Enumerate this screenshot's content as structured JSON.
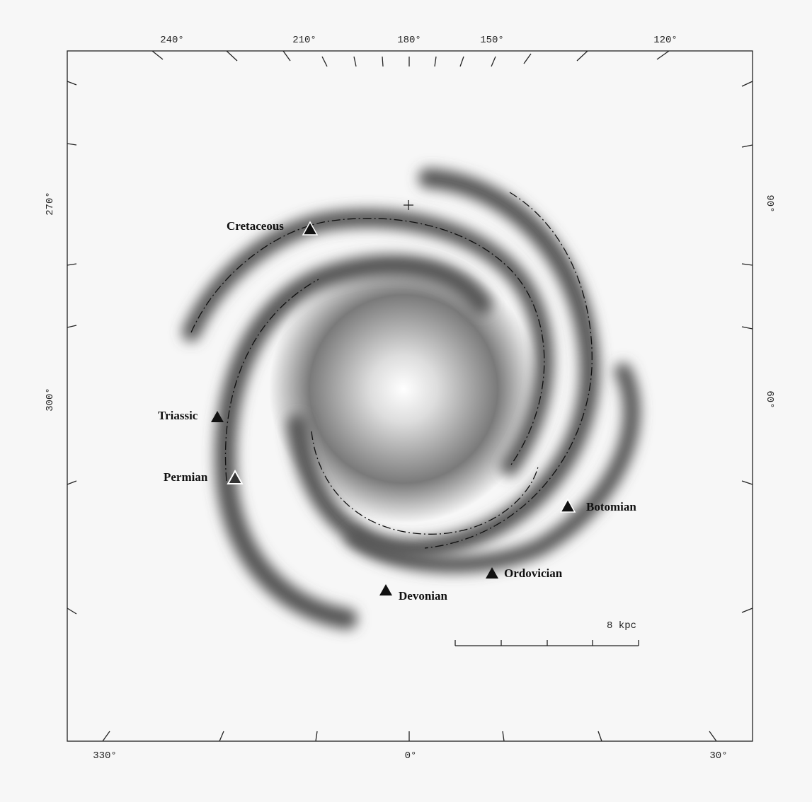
{
  "axis_labels": {
    "top": [
      "240°",
      "210°",
      "180°",
      "150°",
      "120°"
    ],
    "bottom": [
      "330°",
      "0°",
      "30°"
    ],
    "left": [
      "270°",
      "300°"
    ],
    "right": [
      "90°",
      "60°"
    ]
  },
  "markers": [
    {
      "label": "Cretaceous"
    },
    {
      "label": "Triassic"
    },
    {
      "label": "Permian"
    },
    {
      "label": "Botomian"
    },
    {
      "label": "Ordovician"
    },
    {
      "label": "Devonian"
    }
  ],
  "scale_bar": {
    "label": "8 kpc"
  }
}
